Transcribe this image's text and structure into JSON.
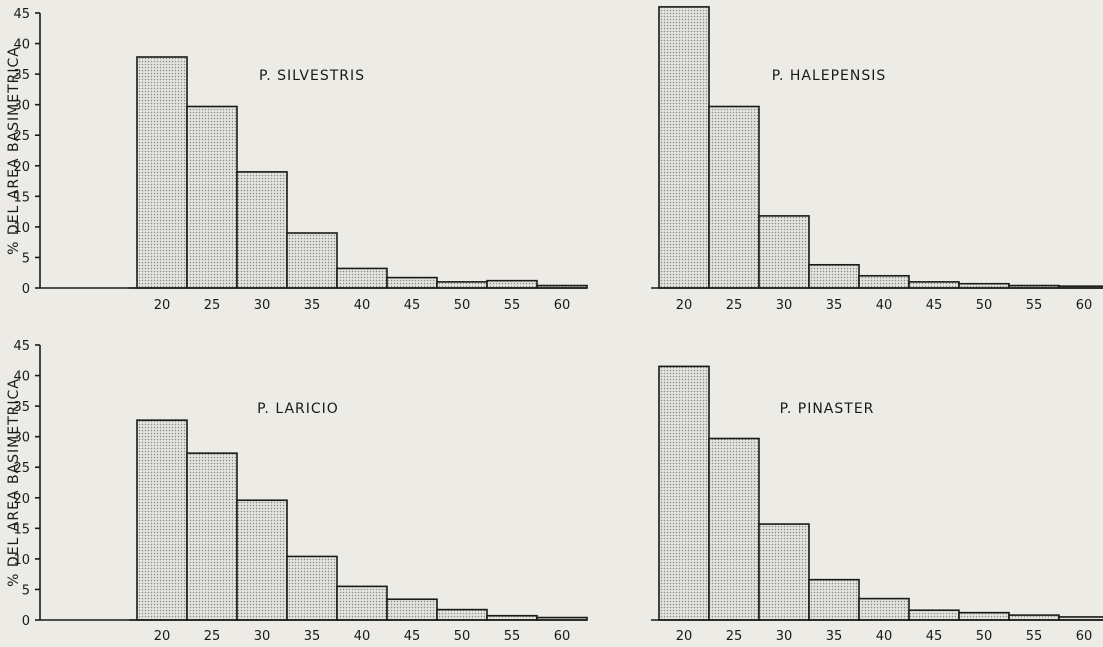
{
  "chart_data": [
    {
      "type": "bar",
      "title": "P. SILVESTRIS",
      "ylabel": "% DEL AREA BASIMETRICA",
      "xlabel": "",
      "categories": [
        "20",
        "25",
        "30",
        "35",
        "40",
        "45",
        "50",
        "55",
        "60"
      ],
      "values": [
        37.8,
        29.7,
        19.0,
        9.0,
        3.2,
        1.7,
        1.0,
        1.2,
        0.4
      ],
      "ylim": [
        0,
        45
      ],
      "yticks": [
        "0",
        "5",
        "10",
        "15",
        "20",
        "25",
        "30",
        "35",
        "40",
        "45"
      ],
      "grid": false
    },
    {
      "type": "bar",
      "title": "P. HALEPENSIS",
      "ylabel": "",
      "xlabel": "",
      "categories": [
        "20",
        "25",
        "30",
        "35",
        "40",
        "45",
        "50",
        "55",
        "60"
      ],
      "values": [
        46.0,
        29.7,
        11.8,
        3.8,
        2.0,
        1.0,
        0.7,
        0.4,
        0.3
      ],
      "ylim": [
        0,
        45
      ],
      "yticks": [],
      "grid": false
    },
    {
      "type": "bar",
      "title": "P. LARICIO",
      "ylabel": "% DEL AREA BASIMETRICA",
      "xlabel": "",
      "categories": [
        "20",
        "25",
        "30",
        "35",
        "40",
        "45",
        "50",
        "55",
        "60"
      ],
      "values": [
        32.7,
        27.3,
        19.6,
        10.4,
        5.5,
        3.4,
        1.7,
        0.7,
        0.4
      ],
      "ylim": [
        0,
        45
      ],
      "yticks": [
        "0",
        "5",
        "10",
        "15",
        "20",
        "25",
        "30",
        "35",
        "40",
        "45"
      ],
      "grid": false
    },
    {
      "type": "bar",
      "title": "P. PINASTER",
      "ylabel": "",
      "xlabel": "",
      "categories": [
        "20",
        "25",
        "30",
        "35",
        "40",
        "45",
        "50",
        "55",
        "60"
      ],
      "values": [
        41.5,
        29.7,
        15.7,
        6.6,
        3.5,
        1.6,
        1.2,
        0.8,
        0.5
      ],
      "ylim": [
        0,
        45
      ],
      "yticks": [],
      "grid": false
    }
  ],
  "colors": {
    "background": "#ecebe6",
    "ink": "#1a1a1a",
    "bar_dots": "#8a8a86"
  }
}
